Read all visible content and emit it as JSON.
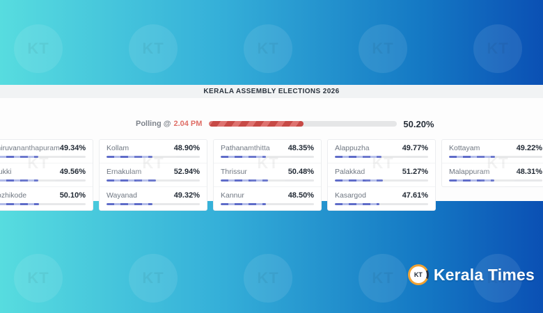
{
  "header": {
    "title": "KERALA ASSEMBLY ELECTIONS 2026"
  },
  "polling": {
    "label": "Polling @",
    "time": "2.04 PM",
    "percent": "50.20%",
    "percent_value": 50.2
  },
  "districts": {
    "columns": [
      {
        "rows": [
          {
            "name": "Thiruvananthapuram",
            "percent": "49.34%",
            "value": 49.34
          },
          {
            "name": "Idukki",
            "percent": "49.56%",
            "value": 49.56
          },
          {
            "name": "Kozhikode",
            "percent": "50.10%",
            "value": 50.1
          }
        ]
      },
      {
        "rows": [
          {
            "name": "Kollam",
            "percent": "48.90%",
            "value": 48.9
          },
          {
            "name": "Ernakulam",
            "percent": "52.94%",
            "value": 52.94
          },
          {
            "name": "Wayanad",
            "percent": "49.32%",
            "value": 49.32
          }
        ]
      },
      {
        "rows": [
          {
            "name": "Pathanamthitta",
            "percent": "48.35%",
            "value": 48.35
          },
          {
            "name": "Thrissur",
            "percent": "50.48%",
            "value": 50.48
          },
          {
            "name": "Kannur",
            "percent": "48.50%",
            "value": 48.5
          }
        ]
      },
      {
        "rows": [
          {
            "name": "Alappuzha",
            "percent": "49.77%",
            "value": 49.77
          },
          {
            "name": "Palakkad",
            "percent": "51.27%",
            "value": 51.27
          },
          {
            "name": "Kasargod",
            "percent": "47.61%",
            "value": 47.61
          }
        ]
      },
      {
        "rows": [
          {
            "name": "Kottayam",
            "percent": "49.22%",
            "value": 49.22
          },
          {
            "name": "Malappuram",
            "percent": "48.31%",
            "value": 48.31
          }
        ]
      }
    ]
  },
  "brand": {
    "name": "Kerala Times",
    "icon_text": "KT"
  },
  "watermark": {
    "text": "KT"
  },
  "colors": {
    "gradient_start": "#57dcdf",
    "gradient_end": "#0b50b4",
    "header_band": "#f1f3f4",
    "polling_fill_red": "#c74a46",
    "district_fill_blue": "#5f6cc9",
    "track_gray": "#e5e6e7",
    "brand_orange": "#f0a233"
  },
  "chart_data": {
    "type": "bar",
    "title": "KERALA ASSEMBLY ELECTIONS 2026",
    "annotation": "Polling @ 2.04 PM",
    "overall_polling_percent": 50.2,
    "unit": "%",
    "categories": [
      "Thiruvananthapuram",
      "Idukki",
      "Kozhikode",
      "Kollam",
      "Ernakulam",
      "Wayanad",
      "Pathanamthitta",
      "Thrissur",
      "Kannur",
      "Alappuzha",
      "Palakkad",
      "Kasargod",
      "Kottayam",
      "Malappuram"
    ],
    "values": [
      49.34,
      49.56,
      50.1,
      48.9,
      52.94,
      49.32,
      48.35,
      50.48,
      48.5,
      49.77,
      51.27,
      47.61,
      49.22,
      48.31
    ],
    "xlim": [
      0,
      100
    ],
    "legend": false,
    "grid": false
  }
}
